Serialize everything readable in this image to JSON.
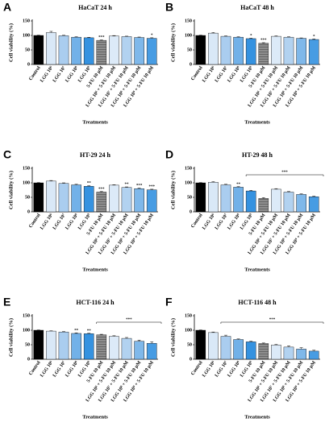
{
  "chart_data": [
    {
      "type": "bar",
      "panel": "A",
      "title": "HaCaT 24 h",
      "ylabel": "Cell viability (%)",
      "xlabel": "Treatments",
      "categories": [
        "Control",
        "LGG 10⁶",
        "LGG 10⁷",
        "LGG 10⁸",
        "LGG 10⁹",
        "5-FU 10 µM",
        "LGG 10⁶ + 5-FU 10 µM",
        "LGG 10⁷ + 5-FU 10 µM",
        "LGG 10⁸ + 5-FU 10 µM",
        "LGG 10⁹ + 5-FU 10 µM"
      ],
      "values": [
        100,
        110,
        99,
        94,
        92,
        83,
        98,
        96,
        93,
        90
      ],
      "errors": [
        1,
        4,
        1.5,
        1.5,
        1.5,
        1.5,
        1.5,
        1.5,
        1.5,
        2
      ],
      "stars": [
        null,
        null,
        null,
        null,
        null,
        "***",
        null,
        null,
        null,
        "*"
      ],
      "colors": [
        "#000000",
        "#d9e8f7",
        "#aacdef",
        "#72b1e8",
        "#3592e0",
        "#8e8e8e",
        "#d9e8f7",
        "#aacdef",
        "#72b1e8",
        "#3592e0"
      ],
      "patterns": [
        null,
        null,
        null,
        null,
        null,
        "hatch",
        "dots",
        "dots",
        "dots",
        "dots"
      ],
      "ylim": [
        0,
        150
      ],
      "yticks": [
        0,
        50,
        100,
        150
      ]
    },
    {
      "type": "bar",
      "panel": "B",
      "title": "HaCaT 48 h",
      "ylabel": "Cell viability (%)",
      "xlabel": "Treatments",
      "categories": [
        "Control",
        "LGG 10⁶",
        "LGG 10⁷",
        "LGG 10⁸",
        "LGG 10⁹",
        "5-FU 10 µM",
        "LGG 10⁶ + 5-FU 10 µM",
        "LGG 10⁷ + 5-FU 10 µM",
        "LGG 10⁸ + 5-FU 10 µM",
        "LGG 10⁹ + 5-FU 10 µM"
      ],
      "values": [
        100,
        108,
        97,
        94,
        89,
        73,
        97,
        94,
        90,
        86
      ],
      "errors": [
        1,
        2,
        1.5,
        1.5,
        1.5,
        2,
        1.5,
        1.5,
        1.5,
        2
      ],
      "stars": [
        null,
        null,
        null,
        null,
        "*",
        "***",
        null,
        null,
        null,
        "*"
      ],
      "colors": [
        "#000000",
        "#d9e8f7",
        "#aacdef",
        "#72b1e8",
        "#3592e0",
        "#8e8e8e",
        "#d9e8f7",
        "#aacdef",
        "#72b1e8",
        "#3592e0"
      ],
      "patterns": [
        null,
        null,
        null,
        null,
        null,
        "hatch",
        "dots",
        "dots",
        "dots",
        "dots"
      ],
      "ylim": [
        0,
        150
      ],
      "yticks": [
        0,
        50,
        100,
        150
      ]
    },
    {
      "type": "bar",
      "panel": "C",
      "title": "HT-29 24 h",
      "ylabel": "Cell viability (%)",
      "xlabel": "Treatments",
      "categories": [
        "Control",
        "LGG 10⁶",
        "LGG 10⁷",
        "LGG 10⁸",
        "LGG 10⁹",
        "5-FU 10 µM",
        "LGG 10⁶ + 5-FU 10 µM",
        "LGG 10⁷ + 5-FU 10 µM",
        "LGG 10⁸ + 5-FU 10 µM",
        "LGG 10⁹ + 5-FU 10 µM"
      ],
      "values": [
        100,
        106,
        98,
        93,
        88,
        68,
        92,
        84,
        80,
        76
      ],
      "errors": [
        1,
        2,
        2,
        2,
        2,
        2,
        1.5,
        2,
        2,
        2
      ],
      "stars": [
        null,
        null,
        null,
        null,
        "**",
        "***",
        null,
        "**",
        "***",
        "***"
      ],
      "colors": [
        "#000000",
        "#d9e8f7",
        "#aacdef",
        "#72b1e8",
        "#3592e0",
        "#8e8e8e",
        "#d9e8f7",
        "#aacdef",
        "#72b1e8",
        "#3592e0"
      ],
      "patterns": [
        null,
        null,
        null,
        null,
        null,
        "hatch",
        "dots",
        "dots",
        "dots",
        "dots"
      ],
      "ylim": [
        0,
        150
      ],
      "yticks": [
        0,
        50,
        100,
        150
      ]
    },
    {
      "type": "bar",
      "panel": "D",
      "title": "HT-29 48 h",
      "ylabel": "Cell viability (%)",
      "xlabel": "Treatments",
      "categories": [
        "Control",
        "LGG 10⁶",
        "LGG 10⁷",
        "LGG 10⁸",
        "LGG 10⁹",
        "5-FU 10 µM",
        "LGG 10⁶ + 5-FU 10 µM",
        "LGG 10⁷ + 5-FU 10 µM",
        "LGG 10⁸ + 5-FU 10 µM",
        "LGG 10⁹ + 5-FU 10 µM"
      ],
      "values": [
        100,
        102,
        93,
        85,
        72,
        46,
        78,
        68,
        60,
        52
      ],
      "errors": [
        1,
        2,
        2,
        2,
        2,
        3,
        2,
        2,
        2,
        2
      ],
      "stars": [
        null,
        null,
        null,
        "**",
        null,
        null,
        null,
        null,
        null,
        null
      ],
      "bracket": {
        "label": "***",
        "from": 4,
        "to": 9
      },
      "colors": [
        "#000000",
        "#d9e8f7",
        "#aacdef",
        "#72b1e8",
        "#3592e0",
        "#8e8e8e",
        "#d9e8f7",
        "#aacdef",
        "#72b1e8",
        "#3592e0"
      ],
      "patterns": [
        null,
        null,
        null,
        null,
        null,
        "hatch",
        "dots",
        "dots",
        "dots",
        "dots"
      ],
      "ylim": [
        0,
        150
      ],
      "yticks": [
        0,
        50,
        100,
        150
      ]
    },
    {
      "type": "bar",
      "panel": "E",
      "title": "HCT-116 24 h",
      "ylabel": "Cell viability (%)",
      "xlabel": "Treatments",
      "categories": [
        "Control",
        "LGG 10⁶",
        "LGG 10⁷",
        "LGG 10⁸",
        "LGG 10⁹",
        "5-FU 10 µM",
        "LGG 10⁶ + 5-FU 10 µM",
        "LGG 10⁷ + 5-FU 10 µM",
        "LGG 10⁸ + 5-FU 10 µM",
        "LGG 10⁹ + 5-FU 10 µM"
      ],
      "values": [
        100,
        97,
        94,
        89,
        88,
        84,
        79,
        72,
        62,
        55
      ],
      "errors": [
        1,
        1,
        1.5,
        2,
        1.5,
        2,
        2,
        3,
        4,
        5
      ],
      "stars": [
        null,
        null,
        null,
        "**",
        "**",
        null,
        null,
        null,
        null,
        null
      ],
      "bracket": {
        "label": "***",
        "from": 5,
        "to": 9
      },
      "colors": [
        "#000000",
        "#d9e8f7",
        "#aacdef",
        "#72b1e8",
        "#3592e0",
        "#8e8e8e",
        "#d9e8f7",
        "#aacdef",
        "#72b1e8",
        "#3592e0"
      ],
      "patterns": [
        null,
        null,
        null,
        null,
        null,
        "hatch",
        "dots",
        "dots",
        "dots",
        "dots"
      ],
      "ylim": [
        0,
        150
      ],
      "yticks": [
        0,
        50,
        100,
        150
      ]
    },
    {
      "type": "bar",
      "panel": "F",
      "title": "HCT-116 48 h",
      "ylabel": "Cell viability (%)",
      "xlabel": "Treatments",
      "categories": [
        "Control",
        "LGG 10⁶",
        "LGG 10⁷",
        "LGG 10⁸",
        "LGG 10⁹",
        "5-FU 10 µM",
        "LGG 10⁶ + 5-FU 10 µM",
        "LGG 10⁷ + 5-FU 10 µM",
        "LGG 10⁸ + 5-FU 10 µM",
        "LGG 10⁹ + 5-FU 10 µM"
      ],
      "values": [
        100,
        92,
        79,
        68,
        60,
        54,
        49,
        42,
        35,
        28
      ],
      "errors": [
        1,
        2,
        4,
        2,
        2,
        2,
        2,
        4,
        5,
        3
      ],
      "stars": [
        null,
        null,
        null,
        null,
        null,
        null,
        null,
        null,
        null,
        null
      ],
      "bracket": {
        "label": "***",
        "from": 2,
        "to": 9
      },
      "colors": [
        "#000000",
        "#d9e8f7",
        "#aacdef",
        "#72b1e8",
        "#3592e0",
        "#8e8e8e",
        "#d9e8f7",
        "#aacdef",
        "#72b1e8",
        "#3592e0"
      ],
      "patterns": [
        null,
        null,
        null,
        null,
        null,
        "hatch",
        "dots",
        "dots",
        "dots",
        "dots"
      ],
      "ylim": [
        0,
        150
      ],
      "yticks": [
        0,
        50,
        100,
        150
      ]
    }
  ]
}
